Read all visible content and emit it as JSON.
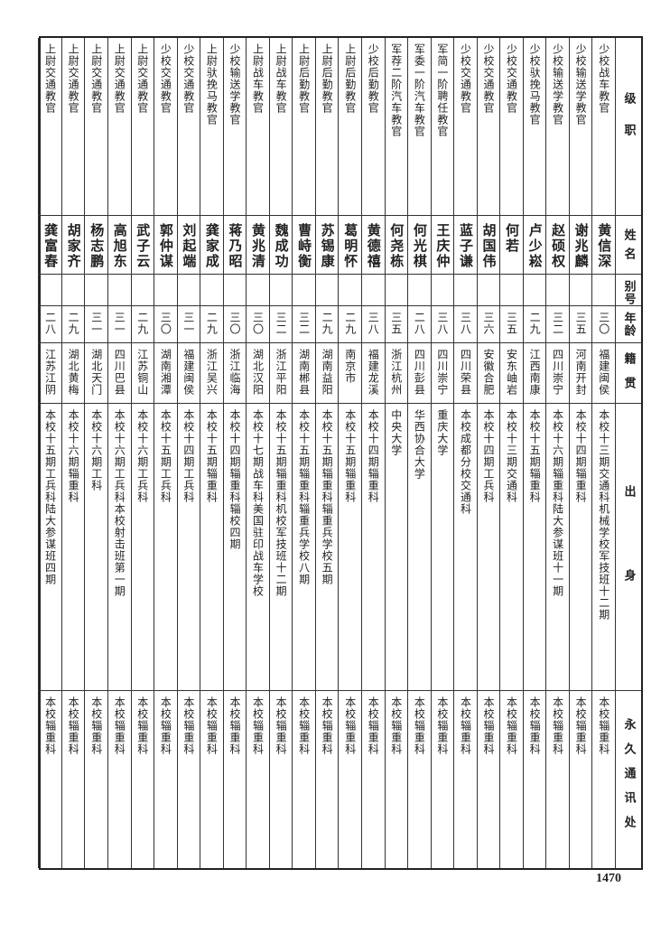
{
  "headers": {
    "title": "级职",
    "name": "姓名",
    "alias": "别号",
    "age": "年龄",
    "place": "籍贯",
    "education": "出身",
    "address": "永久通讯处"
  },
  "rows": [
    {
      "title": "少校战车教官",
      "name": "黄信深",
      "alias": "",
      "age": "三〇",
      "place": "福建闽侯",
      "education": "本校十三期交通科机械学校军技班十二期",
      "address": "本校辎重科"
    },
    {
      "title": "少校输送学教官",
      "name": "谢兆麟",
      "alias": "",
      "age": "三五",
      "place": "河南开封",
      "education": "本校十四期辎重科",
      "address": "本校辎重科"
    },
    {
      "title": "少校输送学教官",
      "name": "赵硕权",
      "alias": "",
      "age": "三二",
      "place": "四川崇宁",
      "education": "本校十六期辎重科陆大参谋班十一期",
      "address": "本校辎重科"
    },
    {
      "title": "少校驮挽马教官",
      "name": "卢少崧",
      "alias": "",
      "age": "二九",
      "place": "江西南康",
      "education": "本校十五期辎重科",
      "address": "本校辎重科"
    },
    {
      "title": "少校交通教官",
      "name": "何若",
      "alias": "",
      "age": "三五",
      "place": "安东岫岩",
      "education": "本校十三期交通科",
      "address": "本校辎重科"
    },
    {
      "title": "少校交通教官",
      "name": "胡国伟",
      "alias": "",
      "age": "三六",
      "place": "安徽合肥",
      "education": "本校十四期工兵科",
      "address": "本校辎重科"
    },
    {
      "title": "少校交通教官",
      "name": "蓝子谦",
      "alias": "",
      "age": "三八",
      "place": "四川荣县",
      "education": "本校成都分校交通科",
      "address": "本校辎重科"
    },
    {
      "title": "军简一阶聘任教官",
      "name": "王庆仲",
      "alias": "",
      "age": "三八",
      "place": "四川崇宁",
      "education": "重庆大学",
      "address": "本校辎重科"
    },
    {
      "title": "军委一阶汽车教官",
      "name": "何光棋",
      "alias": "",
      "age": "二八",
      "place": "四川彭县",
      "education": "华西协合大学",
      "address": "本校辎重科"
    },
    {
      "title": "军荐二阶汽车教官",
      "name": "何尧栋",
      "alias": "",
      "age": "三五",
      "place": "浙江杭州",
      "education": "中央大学",
      "address": "本校辎重科"
    },
    {
      "title": "少校后勤教官",
      "name": "黄德禧",
      "alias": "",
      "age": "三八",
      "place": "福建龙溪",
      "education": "本校十四期辎重科",
      "address": "本校辎重科"
    },
    {
      "title": "上尉后勤教官",
      "name": "葛明怀",
      "alias": "",
      "age": "二九",
      "place": "南京市",
      "education": "本校十五期辎重科",
      "address": "本校辎重科"
    },
    {
      "title": "上尉后勤教官",
      "name": "苏锡康",
      "alias": "",
      "age": "二九",
      "place": "湖南益阳",
      "education": "本校十五期辎重科辎重兵学校五期",
      "address": "本校辎重科"
    },
    {
      "title": "上尉后勤教官",
      "name": "曹峙衡",
      "alias": "",
      "age": "三二",
      "place": "湖南郴县",
      "education": "本校十五期辎重科辎重兵学校八期",
      "address": "本校辎重科"
    },
    {
      "title": "上尉战车教官",
      "name": "魏成功",
      "alias": "",
      "age": "三二",
      "place": "浙江平阳",
      "education": "本校十五期辎重科机校军技班十二期",
      "address": "本校辎重科"
    },
    {
      "title": "上尉战车教官",
      "name": "黄兆清",
      "alias": "",
      "age": "三〇",
      "place": "湖北汉阳",
      "education": "本校十七期战车科美国驻印战车学校",
      "address": "本校辎重科"
    },
    {
      "title": "少校输送学教官",
      "name": "蒋乃昭",
      "alias": "",
      "age": "三〇",
      "place": "浙江临海",
      "education": "本校十四期辎重科辎校四期",
      "address": "本校辎重科"
    },
    {
      "title": "上尉驮挽马教官",
      "name": "龚家成",
      "alias": "",
      "age": "二九",
      "place": "浙江吴兴",
      "education": "本校十五期辎重科",
      "address": "本校辎重科"
    },
    {
      "title": "少校交通教官",
      "name": "刘起端",
      "alias": "",
      "age": "三一",
      "place": "福建闽侯",
      "education": "本校十四期工兵科",
      "address": "本校辎重科"
    },
    {
      "title": "少校交通教官",
      "name": "郭仲谋",
      "alias": "",
      "age": "三〇",
      "place": "湖南湘潭",
      "education": "本校十五期工兵科",
      "address": "本校辎重科"
    },
    {
      "title": "上尉交通教官",
      "name": "武子云",
      "alias": "",
      "age": "二九",
      "place": "江苏铜山",
      "education": "本校十六期工兵科",
      "address": "本校辎重科"
    },
    {
      "title": "上尉交通教官",
      "name": "高旭东",
      "alias": "",
      "age": "三一",
      "place": "四川巴县",
      "education": "本校十六期工兵科本校射击班第一期",
      "address": "本校辎重科"
    },
    {
      "title": "上尉交通教官",
      "name": "杨志鹏",
      "alias": "",
      "age": "三一",
      "place": "湖北天门",
      "education": "本校十六期工科",
      "address": "本校辎重科"
    },
    {
      "title": "上尉交通教官",
      "name": "胡家齐",
      "alias": "",
      "age": "二九",
      "place": "湖北黄梅",
      "education": "本校十六期辎重科",
      "address": "本校辎重科"
    },
    {
      "title": "上尉交通教官",
      "name": "龚富春",
      "alias": "",
      "age": "二八",
      "place": "江苏江阴",
      "education": "本校十五期工兵科陆大参谋班四期",
      "address": "本校辎重科"
    }
  ],
  "page_number": "1470"
}
